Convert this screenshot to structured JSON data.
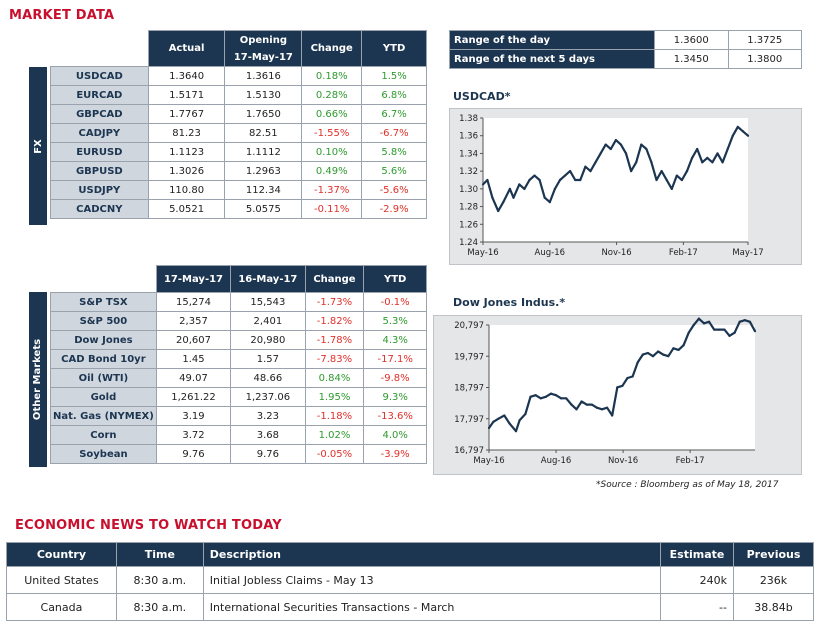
{
  "market_title": "MARKET DATA",
  "fx": {
    "side_label": "FX",
    "headers": [
      "Actual",
      "Opening\n17-May-17",
      "Change",
      "YTD"
    ],
    "rows": [
      {
        "name": "USDCAD",
        "v1": "1.3640",
        "v2": "1.3616",
        "chg": "0.18%",
        "ytd": "1.5%",
        "chg_dir": "pos",
        "ytd_dir": "pos"
      },
      {
        "name": "EURCAD",
        "v1": "1.5171",
        "v2": "1.5130",
        "chg": "0.28%",
        "ytd": "6.8%",
        "chg_dir": "pos",
        "ytd_dir": "pos"
      },
      {
        "name": "GBPCAD",
        "v1": "1.7767",
        "v2": "1.7650",
        "chg": "0.66%",
        "ytd": "6.7%",
        "chg_dir": "pos",
        "ytd_dir": "pos"
      },
      {
        "name": "CADJPY",
        "v1": "81.23",
        "v2": "82.51",
        "chg": "-1.55%",
        "ytd": "-6.7%",
        "chg_dir": "neg",
        "ytd_dir": "neg"
      },
      {
        "name": "EURUSD",
        "v1": "1.1123",
        "v2": "1.1112",
        "chg": "0.10%",
        "ytd": "5.8%",
        "chg_dir": "pos",
        "ytd_dir": "pos"
      },
      {
        "name": "GBPUSD",
        "v1": "1.3026",
        "v2": "1.2963",
        "chg": "0.49%",
        "ytd": "5.6%",
        "chg_dir": "pos",
        "ytd_dir": "pos"
      },
      {
        "name": "USDJPY",
        "v1": "110.80",
        "v2": "112.34",
        "chg": "-1.37%",
        "ytd": "-5.6%",
        "chg_dir": "neg",
        "ytd_dir": "neg"
      },
      {
        "name": "CADCNY",
        "v1": "5.0521",
        "v2": "5.0575",
        "chg": "-0.11%",
        "ytd": "-2.9%",
        "chg_dir": "neg",
        "ytd_dir": "neg"
      }
    ]
  },
  "other": {
    "side_label": "Other Markets",
    "headers": [
      "17-May-17",
      "16-May-17",
      "Change",
      "YTD"
    ],
    "rows": [
      {
        "name": "S&P TSX",
        "v1": "15,274",
        "v2": "15,543",
        "chg": "-1.73%",
        "ytd": "-0.1%",
        "chg_dir": "neg",
        "ytd_dir": "neg"
      },
      {
        "name": "S&P 500",
        "v1": "2,357",
        "v2": "2,401",
        "chg": "-1.82%",
        "ytd": "5.3%",
        "chg_dir": "neg",
        "ytd_dir": "pos"
      },
      {
        "name": "Dow Jones",
        "v1": "20,607",
        "v2": "20,980",
        "chg": "-1.78%",
        "ytd": "4.3%",
        "chg_dir": "neg",
        "ytd_dir": "pos"
      },
      {
        "name": "CAD Bond 10yr",
        "v1": "1.45",
        "v2": "1.57",
        "chg": "-7.83%",
        "ytd": "-17.1%",
        "chg_dir": "neg",
        "ytd_dir": "neg"
      },
      {
        "name": "Oil (WTI)",
        "v1": "49.07",
        "v2": "48.66",
        "chg": "0.84%",
        "ytd": "-9.8%",
        "chg_dir": "pos",
        "ytd_dir": "neg"
      },
      {
        "name": "Gold",
        "v1": "1,261.22",
        "v2": "1,237.06",
        "chg": "1.95%",
        "ytd": "9.3%",
        "chg_dir": "pos",
        "ytd_dir": "pos"
      },
      {
        "name": "Nat. Gas (NYMEX)",
        "v1": "3.19",
        "v2": "3.23",
        "chg": "-1.18%",
        "ytd": "-13.6%",
        "chg_dir": "neg",
        "ytd_dir": "neg"
      },
      {
        "name": "Corn",
        "v1": "3.72",
        "v2": "3.68",
        "chg": "1.02%",
        "ytd": "4.0%",
        "chg_dir": "pos",
        "ytd_dir": "pos"
      },
      {
        "name": "Soybean",
        "v1": "9.76",
        "v2": "9.76",
        "chg": "-0.05%",
        "ytd": "-3.9%",
        "chg_dir": "neg",
        "ytd_dir": "neg"
      }
    ]
  },
  "range": [
    {
      "label": "Range of the day",
      "low": "1.3600",
      "high": "1.3725"
    },
    {
      "label": "Range of the next 5 days",
      "low": "1.3450",
      "high": "1.3800"
    }
  ],
  "source": "*Source : Bloomberg as of  May 18, 2017",
  "news": {
    "title": "ECONOMIC NEWS TO WATCH TODAY",
    "headers": [
      "Country",
      "Time",
      "Description",
      "Estimate",
      "Previous"
    ],
    "rows": [
      {
        "country": "United States",
        "time": "8:30 a.m.",
        "desc": "Initial Jobless Claims - May 13",
        "est": "240k",
        "prev": "236k"
      },
      {
        "country": "Canada",
        "time": "8:30 a.m.",
        "desc": "International Securities Transactions - March",
        "est": "--",
        "prev": "38.84b"
      }
    ]
  },
  "colors": {
    "navy": "#1c3550",
    "red": "#c8102e",
    "pos": "#2e9a2e",
    "neg": "#e0302a"
  },
  "chart_data": [
    {
      "type": "line",
      "title": "USDCAD*",
      "ylim": [
        1.24,
        1.38
      ],
      "yticks": [
        1.24,
        1.26,
        1.28,
        1.3,
        1.32,
        1.34,
        1.36,
        1.38
      ],
      "ytick_labels": [
        "1.24",
        "1.26",
        "1.28",
        "1.30",
        "1.32",
        "1.34",
        "1.36",
        "1.38"
      ],
      "xticks": [
        "May-16",
        "Aug-16",
        "Nov-16",
        "Feb-17",
        "May-17"
      ],
      "x_range": [
        "2016-05-18",
        "2017-05-18"
      ],
      "series": [
        {
          "x": [
            "2016-05-18",
            "2016-05-24",
            "2016-05-31",
            "2016-06-08",
            "2016-06-15",
            "2016-06-24",
            "2016-06-29",
            "2016-07-07",
            "2016-07-14",
            "2016-07-21",
            "2016-07-28",
            "2016-08-04",
            "2016-08-11",
            "2016-08-18",
            "2016-08-25",
            "2016-09-01",
            "2016-09-08",
            "2016-09-15",
            "2016-09-22",
            "2016-09-29",
            "2016-10-06",
            "2016-10-13",
            "2016-10-20",
            "2016-10-27",
            "2016-11-03",
            "2016-11-10",
            "2016-11-17",
            "2016-11-24",
            "2016-12-01",
            "2016-12-08",
            "2016-12-15",
            "2016-12-22",
            "2016-12-29",
            "2017-01-05",
            "2017-01-12",
            "2017-01-19",
            "2017-01-26",
            "2017-02-02",
            "2017-02-09",
            "2017-02-16",
            "2017-02-23",
            "2017-03-02",
            "2017-03-09",
            "2017-03-16",
            "2017-03-23",
            "2017-03-30",
            "2017-04-06",
            "2017-04-13",
            "2017-04-20",
            "2017-04-27",
            "2017-05-04",
            "2017-05-11",
            "2017-05-18"
          ],
          "values": [
            1.305,
            1.31,
            1.29,
            1.275,
            1.285,
            1.3,
            1.29,
            1.305,
            1.3,
            1.31,
            1.315,
            1.31,
            1.29,
            1.285,
            1.3,
            1.31,
            1.315,
            1.32,
            1.31,
            1.31,
            1.325,
            1.32,
            1.33,
            1.34,
            1.35,
            1.345,
            1.355,
            1.35,
            1.34,
            1.32,
            1.33,
            1.35,
            1.345,
            1.33,
            1.31,
            1.32,
            1.31,
            1.3,
            1.315,
            1.31,
            1.32,
            1.335,
            1.345,
            1.33,
            1.335,
            1.33,
            1.34,
            1.33,
            1.345,
            1.36,
            1.37,
            1.365,
            1.36
          ]
        }
      ]
    },
    {
      "type": "line",
      "title": "Dow Jones Indus.*",
      "ylim": [
        16797,
        20797
      ],
      "yticks": [
        16797,
        17797,
        18797,
        19797,
        20797
      ],
      "ytick_labels": [
        "16,797",
        "17,797",
        "18,797",
        "19,797",
        "20,797"
      ],
      "xticks": [
        "May-16",
        "Aug-16",
        "Nov-16",
        "Feb-17"
      ],
      "x_range": [
        "2016-05-18",
        "2017-05-18"
      ],
      "series": [
        {
          "x": [
            "2016-05-18",
            "2016-05-24",
            "2016-05-31",
            "2016-06-08",
            "2016-06-15",
            "2016-06-24",
            "2016-06-29",
            "2016-07-07",
            "2016-07-14",
            "2016-07-21",
            "2016-07-28",
            "2016-08-04",
            "2016-08-11",
            "2016-08-18",
            "2016-08-25",
            "2016-09-01",
            "2016-09-08",
            "2016-09-15",
            "2016-09-22",
            "2016-09-29",
            "2016-10-06",
            "2016-10-13",
            "2016-10-20",
            "2016-10-27",
            "2016-11-03",
            "2016-11-10",
            "2016-11-17",
            "2016-11-24",
            "2016-12-01",
            "2016-12-08",
            "2016-12-15",
            "2016-12-22",
            "2016-12-29",
            "2017-01-05",
            "2017-01-12",
            "2017-01-19",
            "2017-01-26",
            "2017-02-02",
            "2017-02-09",
            "2017-02-16",
            "2017-02-23",
            "2017-03-02",
            "2017-03-09",
            "2017-03-16",
            "2017-03-23",
            "2017-03-30",
            "2017-04-06",
            "2017-04-13",
            "2017-04-20",
            "2017-04-27",
            "2017-05-04",
            "2017-05-11",
            "2017-05-18"
          ],
          "values": [
            17500,
            17700,
            17800,
            17900,
            17650,
            17400,
            17750,
            17950,
            18500,
            18550,
            18450,
            18500,
            18600,
            18550,
            18450,
            18450,
            18250,
            18100,
            18350,
            18250,
            18250,
            18150,
            18100,
            18150,
            17900,
            18800,
            18850,
            19100,
            19150,
            19600,
            19850,
            19900,
            19800,
            19950,
            19850,
            19800,
            20050,
            20000,
            20150,
            20550,
            20800,
            21000,
            20850,
            20900,
            20650,
            20650,
            20650,
            20450,
            20550,
            20900,
            20950,
            20900,
            20600
          ]
        }
      ]
    }
  ]
}
